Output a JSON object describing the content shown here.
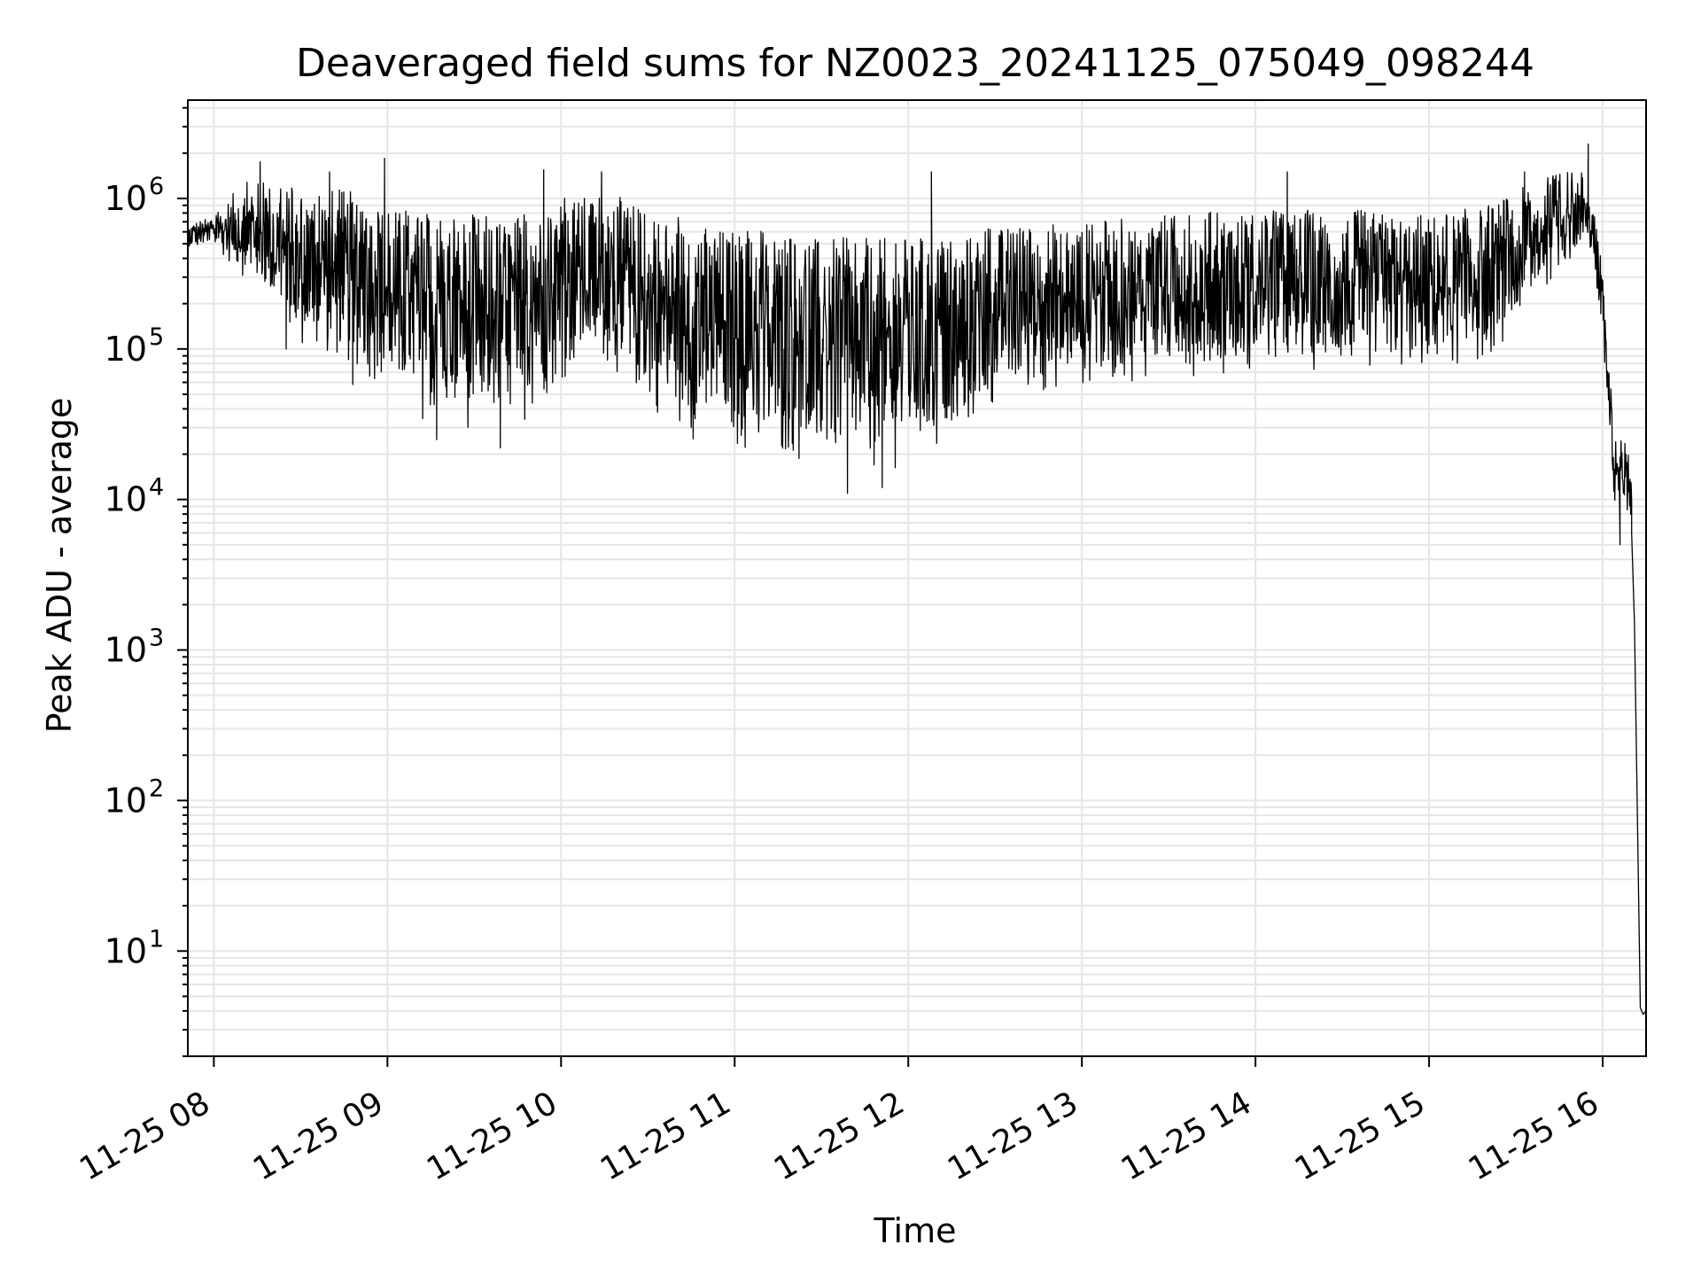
{
  "chart_data": {
    "type": "line",
    "title": "Deaveraged field sums for NZ0023_20241125_075049_098244",
    "xlabel": "Time",
    "ylabel": "Peak ADU - average",
    "yscale": "log",
    "xlim": [
      "2024-11-25 07:51",
      "2024-11-25 16:15"
    ],
    "ylim": [
      2,
      4500000
    ],
    "grid": true,
    "legend": "none",
    "line_color": "#000000",
    "grid_color": "#e6e6e6",
    "x_ticks": [
      {
        "t": "2024-11-25 08:00",
        "label": "11-25 08"
      },
      {
        "t": "2024-11-25 09:00",
        "label": "11-25 09"
      },
      {
        "t": "2024-11-25 10:00",
        "label": "11-25 10"
      },
      {
        "t": "2024-11-25 11:00",
        "label": "11-25 11"
      },
      {
        "t": "2024-11-25 12:00",
        "label": "11-25 12"
      },
      {
        "t": "2024-11-25 13:00",
        "label": "11-25 13"
      },
      {
        "t": "2024-11-25 14:00",
        "label": "11-25 14"
      },
      {
        "t": "2024-11-25 15:00",
        "label": "11-25 15"
      },
      {
        "t": "2024-11-25 16:00",
        "label": "11-25 16"
      }
    ],
    "y_ticks": [
      {
        "value": 10,
        "base": "10",
        "exp": "1"
      },
      {
        "value": 100,
        "base": "10",
        "exp": "2"
      },
      {
        "value": 1000,
        "base": "10",
        "exp": "3"
      },
      {
        "value": 10000,
        "base": "10",
        "exp": "4"
      },
      {
        "value": 100000,
        "base": "10",
        "exp": "5"
      },
      {
        "value": 1000000,
        "base": "10",
        "exp": "6"
      }
    ],
    "series": [
      {
        "envelope": [
          {
            "t": "2024-11-25 07:51",
            "hi": 700000,
            "lo": 450000
          },
          {
            "t": "2024-11-25 08:00",
            "hi": 750000,
            "lo": 480000
          },
          {
            "t": "2024-11-25 08:10",
            "hi": 1300000,
            "lo": 300000
          },
          {
            "t": "2024-11-25 08:20",
            "hi": 1300000,
            "lo": 200000
          },
          {
            "t": "2024-11-25 08:30",
            "hi": 1200000,
            "lo": 100000
          },
          {
            "t": "2024-11-25 08:40",
            "hi": 1200000,
            "lo": 80000
          },
          {
            "t": "2024-11-25 08:50",
            "hi": 1100000,
            "lo": 70000
          },
          {
            "t": "2024-11-25 09:00",
            "hi": 900000,
            "lo": 50000
          },
          {
            "t": "2024-11-25 09:15",
            "hi": 800000,
            "lo": 30000
          },
          {
            "t": "2024-11-25 09:30",
            "hi": 800000,
            "lo": 28000
          },
          {
            "t": "2024-11-25 09:45",
            "hi": 800000,
            "lo": 30000
          },
          {
            "t": "2024-11-25 10:00",
            "hi": 1000000,
            "lo": 60000
          },
          {
            "t": "2024-11-25 10:15",
            "hi": 1100000,
            "lo": 80000
          },
          {
            "t": "2024-11-25 10:30",
            "hi": 900000,
            "lo": 40000
          },
          {
            "t": "2024-11-25 10:45",
            "hi": 700000,
            "lo": 25000
          },
          {
            "t": "2024-11-25 11:00",
            "hi": 650000,
            "lo": 20000
          },
          {
            "t": "2024-11-25 11:15",
            "hi": 600000,
            "lo": 18000
          },
          {
            "t": "2024-11-25 11:30",
            "hi": 550000,
            "lo": 16000
          },
          {
            "t": "2024-11-25 11:45",
            "hi": 550000,
            "lo": 15000
          },
          {
            "t": "2024-11-25 12:00",
            "hi": 550000,
            "lo": 16000
          },
          {
            "t": "2024-11-25 12:15",
            "hi": 550000,
            "lo": 20000
          },
          {
            "t": "2024-11-25 12:30",
            "hi": 650000,
            "lo": 40000
          },
          {
            "t": "2024-11-25 12:45",
            "hi": 700000,
            "lo": 50000
          },
          {
            "t": "2024-11-25 13:00",
            "hi": 700000,
            "lo": 55000
          },
          {
            "t": "2024-11-25 13:30",
            "hi": 800000,
            "lo": 65000
          },
          {
            "t": "2024-11-25 14:00",
            "hi": 850000,
            "lo": 70000
          },
          {
            "t": "2024-11-25 14:30",
            "hi": 850000,
            "lo": 70000
          },
          {
            "t": "2024-11-25 15:00",
            "hi": 800000,
            "lo": 70000
          },
          {
            "t": "2024-11-25 15:20",
            "hi": 900000,
            "lo": 80000
          },
          {
            "t": "2024-11-25 15:40",
            "hi": 1400000,
            "lo": 250000
          },
          {
            "t": "2024-11-25 15:55",
            "hi": 1600000,
            "lo": 500000
          },
          {
            "t": "2024-11-25 15:59",
            "hi": 500000,
            "lo": 150000
          },
          {
            "t": "2024-11-25 16:02",
            "hi": 100000,
            "lo": 30000
          },
          {
            "t": "2024-11-25 16:04",
            "hi": 25000,
            "lo": 8000
          },
          {
            "t": "2024-11-25 16:08",
            "hi": 25000,
            "lo": 7000
          },
          {
            "t": "2024-11-25 16:10",
            "hi": 15000,
            "lo": 6000
          }
        ],
        "tail": [
          {
            "t": "2024-11-25 16:10",
            "v": 6000
          },
          {
            "t": "2024-11-25 16:11",
            "v": 1500
          },
          {
            "t": "2024-11-25 16:12",
            "v": 80
          },
          {
            "t": "2024-11-25 16:13",
            "v": 4.2
          },
          {
            "t": "2024-11-25 16:14",
            "v": 3.8
          },
          {
            "t": "2024-11-25 16:15",
            "v": 4.0
          }
        ],
        "spikes": [
          {
            "t": "2024-11-25 08:16",
            "v": 1750000
          },
          {
            "t": "2024-11-25 08:25",
            "v": 100000
          },
          {
            "t": "2024-11-25 08:40",
            "v": 1500000
          },
          {
            "t": "2024-11-25 08:48",
            "v": 58000
          },
          {
            "t": "2024-11-25 08:59",
            "v": 1850000
          },
          {
            "t": "2024-11-25 09:17",
            "v": 25000
          },
          {
            "t": "2024-11-25 09:39",
            "v": 22000
          },
          {
            "t": "2024-11-25 09:54",
            "v": 1550000
          },
          {
            "t": "2024-11-25 10:14",
            "v": 1500000
          },
          {
            "t": "2024-11-25 11:39",
            "v": 11000
          },
          {
            "t": "2024-11-25 11:51",
            "v": 12000
          },
          {
            "t": "2024-11-25 12:08",
            "v": 1500000
          },
          {
            "t": "2024-11-25 14:11",
            "v": 1500000
          },
          {
            "t": "2024-11-25 15:33",
            "v": 1500000
          },
          {
            "t": "2024-11-25 15:55",
            "v": 2300000
          },
          {
            "t": "2024-11-25 16:06",
            "v": 5000
          }
        ]
      }
    ]
  }
}
